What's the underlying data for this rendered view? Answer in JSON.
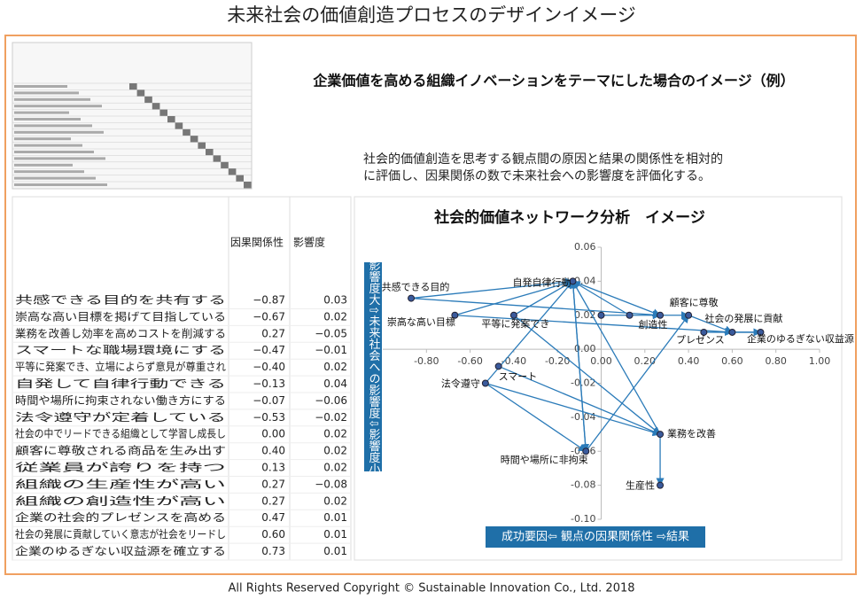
{
  "title": "未来社会の価値創造プロセスのデザインイメージ",
  "heading": "企業価値を高める組織イノベーションをテーマにした場合のイメージ（例）",
  "description": [
    "社会的価値創造を思考する観点間の原因と結果の関係性を相対的",
    "に評価し、因果関係の数で未来社会への影響度を評価化する。"
  ],
  "copyright": "All Rights Reserved Copyright  © Sustainable Innovation  Co., Ltd.  2018",
  "table": {
    "headers": [
      "因果関係性",
      "影響度"
    ],
    "rows": [
      [
        "共感できる目的を共有する",
        "−0.87",
        "0.03"
      ],
      [
        "崇高な高い目標を掲げて目指している",
        "−0.67",
        "0.02"
      ],
      [
        "業務を改善し効率を高めコストを削減する",
        "0.27",
        "−0.05"
      ],
      [
        "スマートな職場環境にする",
        "−0.47",
        "−0.01"
      ],
      [
        "平等に発案でき、立場によらず意見が尊重され",
        "−0.40",
        "0.02"
      ],
      [
        "自発して自律行動できる",
        "−0.13",
        "0.04"
      ],
      [
        "時間や場所に拘束されない働き方にする",
        "−0.07",
        "−0.06"
      ],
      [
        "法令遵守が定着している",
        "−0.53",
        "−0.02"
      ],
      [
        "社会の中でリードできる組織として学習し成長し",
        "0.00",
        "0.02"
      ],
      [
        "顧客に尊敬される商品を生み出す",
        "0.40",
        "0.02"
      ],
      [
        "従業員が誇りを持つ",
        "0.13",
        "0.02"
      ],
      [
        "組織の生産性が高い",
        "0.27",
        "−0.08"
      ],
      [
        "組織の創造性が高い",
        "0.27",
        "0.02"
      ],
      [
        "企業の社会的プレゼンスを高める",
        "0.47",
        "0.01"
      ],
      [
        "社会の発展に貢献していく意志が社会をリードし",
        "0.60",
        "0.01"
      ],
      [
        "企業のゆるぎない収益源を確立する",
        "0.73",
        "0.01"
      ]
    ]
  },
  "chart_data": {
    "type": "scatter",
    "title": "社会的価値ネットワーク分析　イメージ",
    "y_label": "影響度大⇧未来社会への影響度⇩影響度小",
    "x_label": "成功要因⇦ 観点の因果関係性 ⇨結果",
    "labels": [
      "共感できる目的",
      "崇高な高い目標",
      "業務を改善",
      "スマート",
      "平等に発案でき",
      "自発自律行動",
      "時間や場所に非拘束",
      "法令遵守",
      null,
      "顧客に尊敬",
      null,
      "生産性",
      "創造性",
      "プレゼンス",
      "社会の発展に貢献",
      "企業のゆるぎない収益源"
    ],
    "x": [
      -0.87,
      -0.67,
      0.27,
      -0.47,
      -0.4,
      -0.13,
      -0.07,
      -0.53,
      0.0,
      0.4,
      0.13,
      0.27,
      0.27,
      0.47,
      0.6,
      0.73
    ],
    "values": [
      0.03,
      0.02,
      -0.05,
      -0.01,
      0.02,
      0.04,
      -0.06,
      -0.02,
      0.02,
      0.02,
      0.02,
      -0.08,
      0.02,
      0.01,
      0.01,
      0.01
    ],
    "color": "#3a5a9c",
    "arrow_color": "#2b7bb9",
    "xlim": [
      -1.0,
      1.0
    ],
    "xticks": [
      {
        "value": -0.8,
        "label": "-0.80"
      },
      {
        "value": -0.6,
        "label": "-0.60"
      },
      {
        "value": -0.4,
        "label": "-0.40"
      },
      {
        "value": -0.2,
        "label": "-0.20"
      },
      {
        "value": 0,
        "label": "0.00"
      },
      {
        "value": 0.2,
        "label": "0.20"
      },
      {
        "value": 0.4,
        "label": "0.40"
      },
      {
        "value": 0.6,
        "label": "0.60"
      },
      {
        "value": 0.8,
        "label": "0.80"
      },
      {
        "value": 1.0,
        "label": "1.00"
      }
    ],
    "ylim": [
      -0.1,
      0.06
    ],
    "yticks": [
      {
        "value": 0.06,
        "label": "0.06"
      },
      {
        "value": 0.04,
        "label": "0.04"
      },
      {
        "value": 0.02,
        "label": "0.02"
      },
      {
        "value": 0,
        "label": "0.00"
      },
      {
        "value": -0.02,
        "label": "-0.02"
      },
      {
        "value": -0.04,
        "label": "-0.04"
      },
      {
        "value": -0.06,
        "label": "-0.06"
      },
      {
        "value": -0.08,
        "label": "-0.08"
      },
      {
        "value": -0.1,
        "label": "-0.10"
      }
    ]
  }
}
